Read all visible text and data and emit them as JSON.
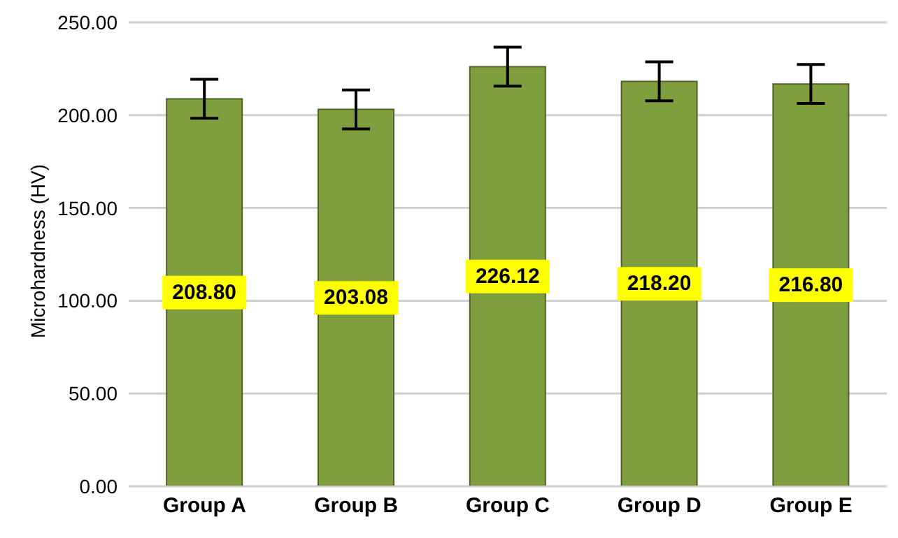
{
  "chart_data": {
    "type": "bar",
    "ylabel": "Microhardness (HV)",
    "categories": [
      "Group A",
      "Group B",
      "Group C",
      "Group D",
      "Group E"
    ],
    "values": [
      208.8,
      203.08,
      226.12,
      218.2,
      216.8
    ],
    "color": "#7f9f3f",
    "errors": [
      10.5,
      10.5,
      10.5,
      10.5,
      10.5
    ],
    "ylim": [
      0,
      250
    ],
    "yticks": [
      {
        "value": 0,
        "label": "0.00"
      },
      {
        "value": 50,
        "label": "50.00"
      },
      {
        "value": 100,
        "label": "100.00"
      },
      {
        "value": 150,
        "label": "150.00"
      },
      {
        "value": 200,
        "label": "200.00"
      },
      {
        "value": 250,
        "label": "250.00"
      }
    ],
    "value_labels": [
      "208.80",
      "203.08",
      "226.12",
      "218.20",
      "216.80"
    ],
    "grid": "y"
  }
}
